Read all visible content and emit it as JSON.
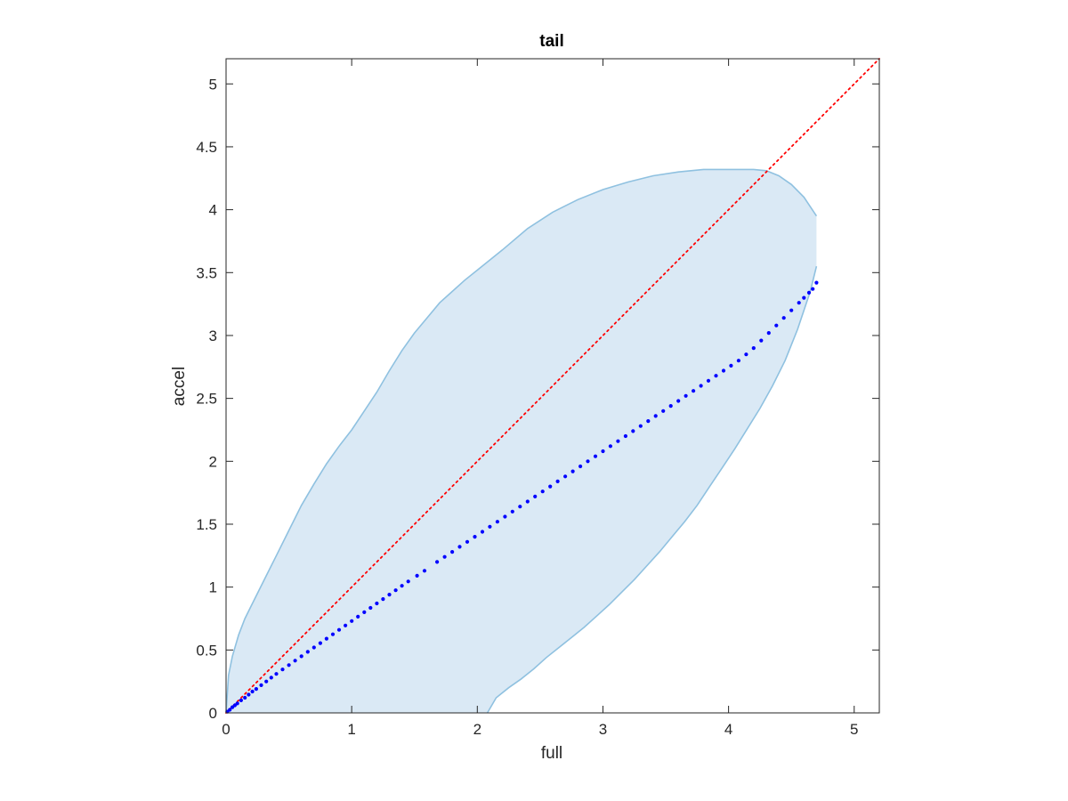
{
  "chart_data": {
    "type": "scatter",
    "title": "tail",
    "xlabel": "full",
    "ylabel": "accel",
    "xlim": [
      0,
      5.2
    ],
    "ylim": [
      0,
      5.2
    ],
    "xticks": [
      "0",
      "1",
      "2",
      "3",
      "4",
      "5"
    ],
    "yticks": [
      "0",
      "0.5",
      "1",
      "1.5",
      "2",
      "2.5",
      "3",
      "3.5",
      "4",
      "4.5",
      "5"
    ],
    "grid": false,
    "colors": {
      "points": "#0000ff",
      "reference_line": "#ff0000",
      "band_fill": "#dae9f5",
      "band_edge": "#8fc1e0",
      "axes": "#262626"
    },
    "reference_line": {
      "style": "dotted",
      "from": [
        0,
        0
      ],
      "to": [
        5.2,
        5.2
      ]
    },
    "band_upper": {
      "x": [
        0,
        0.02,
        0.05,
        0.1,
        0.15,
        0.2,
        0.3,
        0.4,
        0.5,
        0.6,
        0.7,
        0.8,
        0.9,
        1.0,
        1.1,
        1.2,
        1.3,
        1.4,
        1.5,
        1.6,
        1.7,
        1.8,
        1.9,
        2.0,
        2.2,
        2.4,
        2.6,
        2.8,
        3.0,
        3.2,
        3.4,
        3.6,
        3.7,
        3.8,
        4.0,
        4.2,
        4.3,
        4.4,
        4.5,
        4.6,
        4.7
      ],
      "y": [
        0,
        0.3,
        0.45,
        0.62,
        0.75,
        0.85,
        1.05,
        1.25,
        1.45,
        1.65,
        1.82,
        1.98,
        2.12,
        2.25,
        2.4,
        2.55,
        2.72,
        2.88,
        3.02,
        3.14,
        3.26,
        3.35,
        3.44,
        3.52,
        3.68,
        3.85,
        3.98,
        4.08,
        4.16,
        4.22,
        4.27,
        4.3,
        4.31,
        4.32,
        4.32,
        4.32,
        4.31,
        4.27,
        4.2,
        4.1,
        3.95
      ]
    },
    "band_lower": {
      "x": [
        0,
        0.5,
        1.0,
        1.5,
        2.08,
        2.15,
        2.25,
        2.35,
        2.45,
        2.55,
        2.65,
        2.75,
        2.85,
        2.95,
        3.05,
        3.15,
        3.25,
        3.35,
        3.45,
        3.55,
        3.65,
        3.75,
        3.85,
        3.95,
        4.05,
        4.15,
        4.25,
        4.35,
        4.45,
        4.55,
        4.65,
        4.7
      ],
      "y": [
        0,
        0,
        0,
        0,
        0,
        0.12,
        0.2,
        0.27,
        0.35,
        0.44,
        0.52,
        0.6,
        0.68,
        0.77,
        0.86,
        0.96,
        1.06,
        1.17,
        1.28,
        1.4,
        1.52,
        1.65,
        1.8,
        1.95,
        2.1,
        2.26,
        2.42,
        2.6,
        2.8,
        3.05,
        3.35,
        3.55
      ]
    },
    "series": [
      {
        "x": [
          0.01,
          0.03,
          0.05,
          0.07,
          0.09,
          0.12,
          0.15,
          0.18,
          0.21,
          0.24,
          0.28,
          0.32,
          0.36,
          0.4,
          0.45,
          0.5,
          0.55,
          0.6,
          0.65,
          0.7,
          0.75,
          0.8,
          0.85,
          0.9,
          0.95,
          1.0,
          1.05,
          1.1,
          1.15,
          1.2,
          1.25,
          1.3,
          1.35,
          1.4,
          1.45,
          1.52,
          1.58,
          1.68,
          1.74,
          1.8,
          1.86,
          1.92,
          1.98,
          2.04,
          2.1,
          2.16,
          2.22,
          2.28,
          2.34,
          2.4,
          2.46,
          2.52,
          2.58,
          2.64,
          2.7,
          2.76,
          2.82,
          2.88,
          2.94,
          3.0,
          3.06,
          3.12,
          3.18,
          3.24,
          3.3,
          3.36,
          3.42,
          3.48,
          3.54,
          3.6,
          3.66,
          3.72,
          3.78,
          3.84,
          3.9,
          3.96,
          4.02,
          4.08,
          4.14,
          4.2,
          4.26,
          4.32,
          4.38,
          4.44,
          4.5,
          4.56,
          4.6,
          4.64,
          4.67,
          4.7
        ],
        "y": [
          0.01,
          0.025,
          0.045,
          0.06,
          0.075,
          0.1,
          0.12,
          0.145,
          0.17,
          0.19,
          0.22,
          0.25,
          0.28,
          0.31,
          0.345,
          0.38,
          0.415,
          0.45,
          0.485,
          0.52,
          0.555,
          0.59,
          0.625,
          0.66,
          0.695,
          0.73,
          0.765,
          0.8,
          0.835,
          0.87,
          0.905,
          0.94,
          0.975,
          1.01,
          1.045,
          1.09,
          1.13,
          1.2,
          1.24,
          1.28,
          1.32,
          1.36,
          1.4,
          1.44,
          1.48,
          1.52,
          1.56,
          1.6,
          1.64,
          1.68,
          1.72,
          1.76,
          1.8,
          1.84,
          1.88,
          1.92,
          1.96,
          2.0,
          2.04,
          2.08,
          2.12,
          2.16,
          2.2,
          2.24,
          2.28,
          2.32,
          2.36,
          2.4,
          2.44,
          2.48,
          2.52,
          2.56,
          2.6,
          2.64,
          2.68,
          2.72,
          2.76,
          2.8,
          2.85,
          2.9,
          2.96,
          3.02,
          3.08,
          3.14,
          3.2,
          3.26,
          3.3,
          3.34,
          3.37,
          3.42
        ]
      }
    ]
  }
}
